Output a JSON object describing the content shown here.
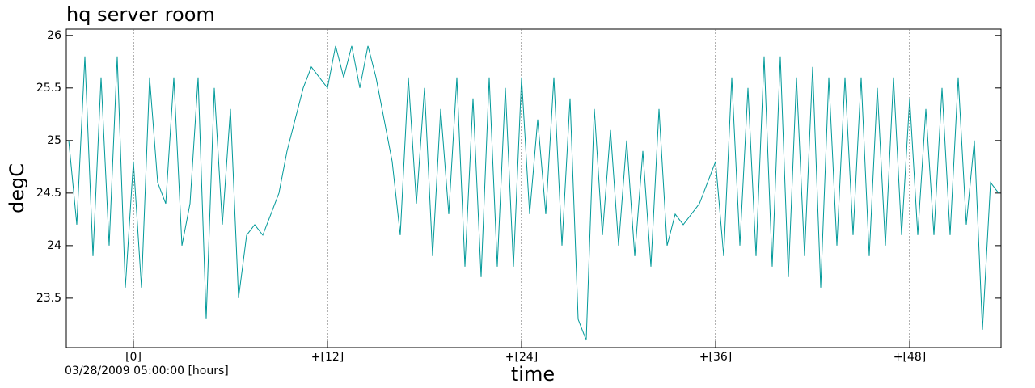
{
  "chart_data": {
    "type": "line",
    "title": "hq server room",
    "subtitle": "03/28/2009 05:00:00 [hours]",
    "x_label": "time",
    "y_label": "degC",
    "xlim": [
      -4.15,
      53.65
    ],
    "ylim": [
      23.03,
      26.06
    ],
    "xticks": [
      {
        "value": 0,
        "label": "[0]"
      },
      {
        "value": 12,
        "label": "+[12]"
      },
      {
        "value": 24,
        "label": "+[24]"
      },
      {
        "value": 36,
        "label": "+[36]"
      },
      {
        "value": 48,
        "label": "+[48]"
      }
    ],
    "yticks": [
      23.5,
      24,
      24.5,
      25,
      25.5,
      26
    ],
    "grid": true,
    "series": [
      {
        "name": "hq server room",
        "color": "#009999",
        "x": [
          -4,
          -3.5,
          -3,
          -2.5,
          -2,
          -1.5,
          -1,
          -0.5,
          0,
          0.5,
          1,
          1.5,
          2,
          2.5,
          3,
          3.5,
          4,
          4.5,
          5,
          5.5,
          6,
          6.5,
          7,
          7.5,
          8,
          8.5,
          9,
          9.5,
          10,
          10.5,
          11,
          11.5,
          12,
          12.5,
          13,
          13.5,
          14,
          14.5,
          15,
          15.5,
          16,
          16.5,
          17,
          17.5,
          18,
          18.5,
          19,
          19.5,
          20,
          20.5,
          21,
          21.5,
          22,
          22.5,
          23,
          23.5,
          24,
          24.5,
          25,
          25.5,
          26,
          26.5,
          27,
          27.5,
          28,
          28.5,
          29,
          29.5,
          30,
          30.5,
          31,
          31.5,
          32,
          32.5,
          33,
          33.5,
          34,
          34.5,
          35,
          35.5,
          36,
          36.5,
          37,
          37.5,
          38,
          38.5,
          39,
          39.5,
          40,
          40.5,
          41,
          41.5,
          42,
          42.5,
          43,
          43.5,
          44,
          44.5,
          45,
          45.5,
          46,
          46.5,
          47,
          47.5,
          48,
          48.5,
          49,
          49.5,
          50,
          50.5,
          51,
          51.5,
          52,
          52.5,
          53,
          53.5
        ],
        "values": [
          25.0,
          24.2,
          25.8,
          23.9,
          25.6,
          24.0,
          25.8,
          23.6,
          24.8,
          23.6,
          25.6,
          24.6,
          24.4,
          25.6,
          24.0,
          24.4,
          25.6,
          23.3,
          25.5,
          24.2,
          25.3,
          23.5,
          24.1,
          24.2,
          24.1,
          24.3,
          24.5,
          24.9,
          25.2,
          25.5,
          25.7,
          25.6,
          25.5,
          25.9,
          25.6,
          25.9,
          25.5,
          25.9,
          25.6,
          25.2,
          24.8,
          24.1,
          25.6,
          24.4,
          25.5,
          23.9,
          25.3,
          24.3,
          25.6,
          23.8,
          25.4,
          23.7,
          25.6,
          23.8,
          25.5,
          23.8,
          25.6,
          24.3,
          25.2,
          24.3,
          25.6,
          24.0,
          25.4,
          23.3,
          23.1,
          25.3,
          24.1,
          25.1,
          24.0,
          25.0,
          23.9,
          24.9,
          23.8,
          25.3,
          24.0,
          24.3,
          24.2,
          24.3,
          24.4,
          24.6,
          24.8,
          23.9,
          25.6,
          24.0,
          25.5,
          23.9,
          25.8,
          23.8,
          25.8,
          23.7,
          25.6,
          23.9,
          25.7,
          23.6,
          25.6,
          24.0,
          25.6,
          24.1,
          25.6,
          23.9,
          25.5,
          24.0,
          25.6,
          24.1,
          25.4,
          24.1,
          25.3,
          24.1,
          25.5,
          24.1,
          25.6,
          24.2,
          25.0,
          23.2,
          24.6,
          24.5
        ]
      }
    ]
  }
}
